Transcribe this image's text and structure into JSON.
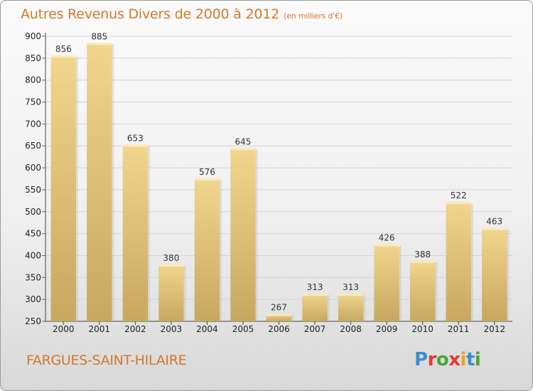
{
  "chart_data": {
    "type": "bar",
    "title": "Autres Revenus Divers de 2000 à 2012",
    "subtitle": "(en milliers d'€)",
    "categories": [
      "2000",
      "2001",
      "2002",
      "2003",
      "2004",
      "2005",
      "2006",
      "2007",
      "2008",
      "2009",
      "2010",
      "2011",
      "2012"
    ],
    "values": [
      856,
      885,
      653,
      380,
      576,
      645,
      267,
      313,
      313,
      426,
      388,
      522,
      463
    ],
    "ylim": [
      250,
      900
    ],
    "yticks": [
      250,
      300,
      350,
      400,
      450,
      500,
      550,
      600,
      650,
      700,
      750,
      800,
      850,
      900
    ],
    "grid": true,
    "bar_color": "#e6c57a"
  },
  "footer": {
    "commune": "FARGUES-SAINT-HILAIRE",
    "logo": "Proxiti"
  },
  "colors": {
    "title": "#d2782a",
    "logo": [
      "#3a8fd0",
      "#e23a2e",
      "#48a635",
      "#e23a2e",
      "#f0a020",
      "#3a8fd0",
      "#48a635"
    ]
  }
}
